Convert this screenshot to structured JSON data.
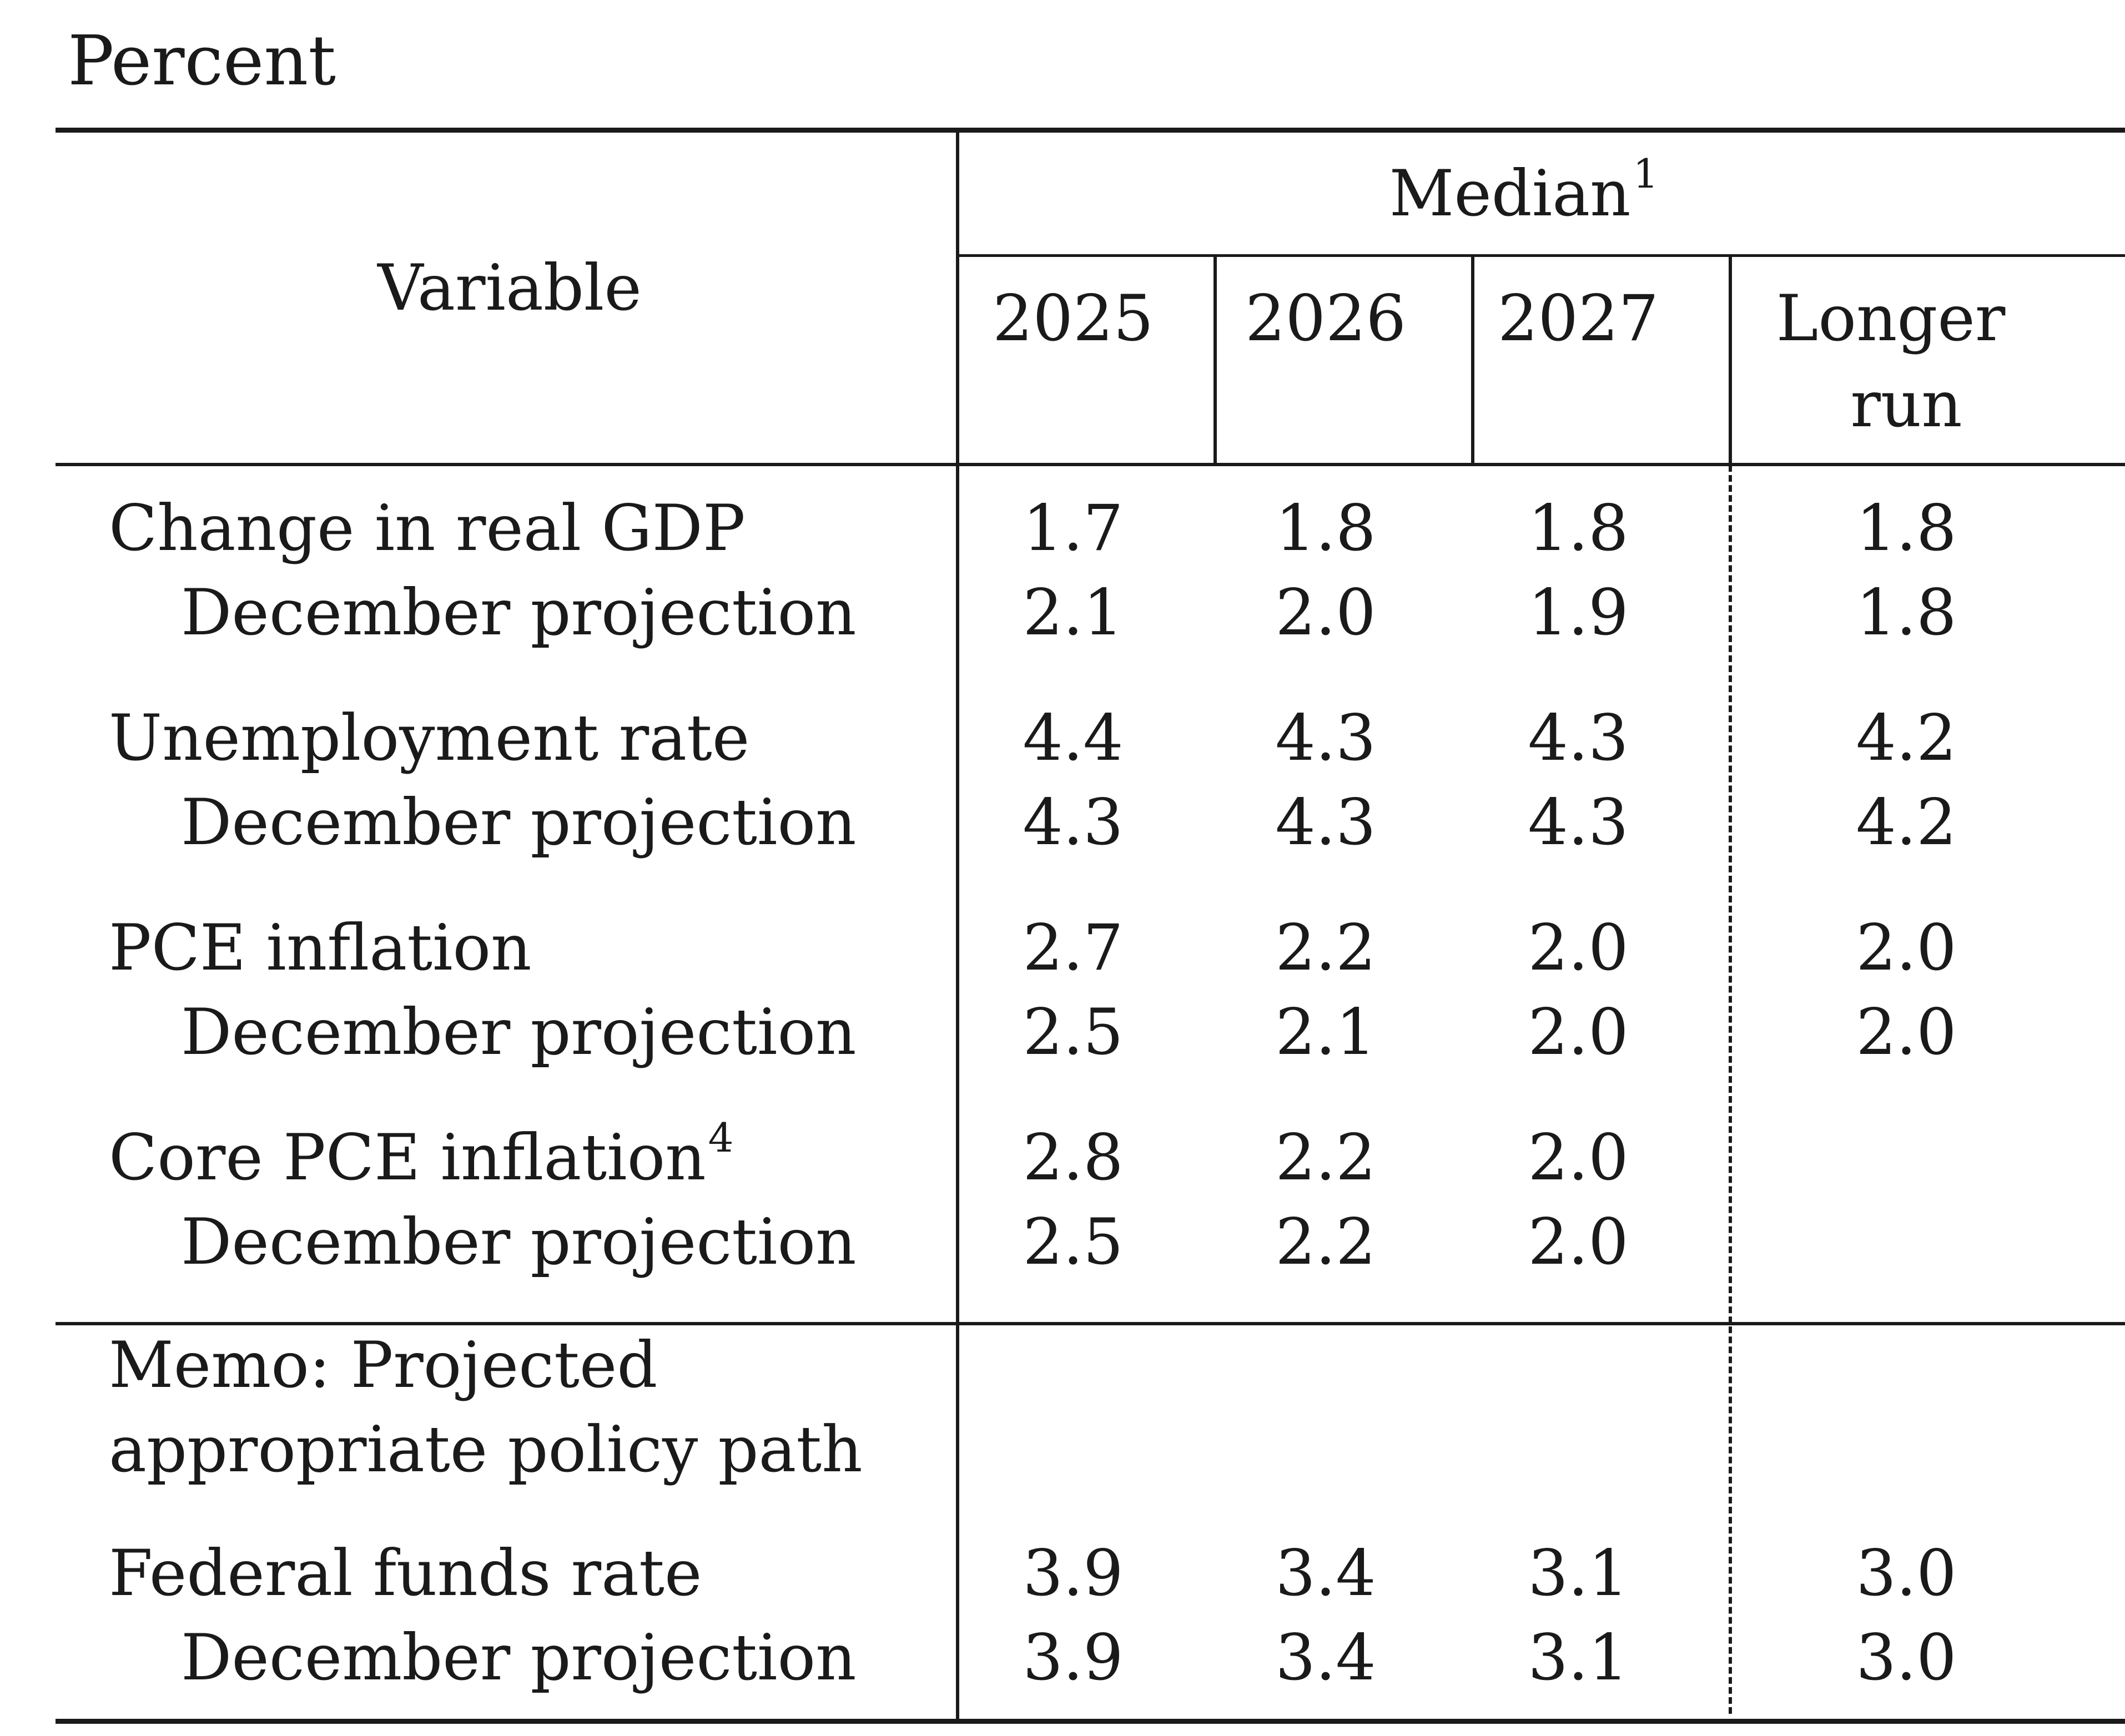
{
  "unit_label": "Percent",
  "header": {
    "variable": "Variable",
    "group": "Median",
    "group_footnote": "1",
    "years": [
      "2025",
      "2026",
      "2027"
    ],
    "longer_run_line1": "Longer",
    "longer_run_line2": "run"
  },
  "rows": [
    {
      "label": "Change in real GDP",
      "values": [
        "1.7",
        "1.8",
        "1.8",
        "1.8"
      ]
    },
    {
      "label": "December projection",
      "values": [
        "2.1",
        "2.0",
        "1.9",
        "1.8"
      ]
    },
    {
      "label": "Unemployment rate",
      "values": [
        "4.4",
        "4.3",
        "4.3",
        "4.2"
      ]
    },
    {
      "label": "December projection",
      "values": [
        "4.3",
        "4.3",
        "4.3",
        "4.2"
      ]
    },
    {
      "label": "PCE inflation",
      "values": [
        "2.7",
        "2.2",
        "2.0",
        "2.0"
      ]
    },
    {
      "label": "December projection",
      "values": [
        "2.5",
        "2.1",
        "2.0",
        "2.0"
      ]
    },
    {
      "label": "Core PCE inflation",
      "footnote": "4",
      "values": [
        "2.8",
        "2.2",
        "2.0",
        ""
      ]
    },
    {
      "label": "December projection",
      "values": [
        "2.5",
        "2.2",
        "2.0",
        ""
      ]
    }
  ],
  "memo": {
    "line1": "Memo: Projected",
    "line2": "appropriate policy path"
  },
  "memo_rows": [
    {
      "label": "Federal funds rate",
      "values": [
        "3.9",
        "3.4",
        "3.1",
        "3.0"
      ]
    },
    {
      "label": "December projection",
      "values": [
        "3.9",
        "3.4",
        "3.1",
        "3.0"
      ]
    }
  ]
}
